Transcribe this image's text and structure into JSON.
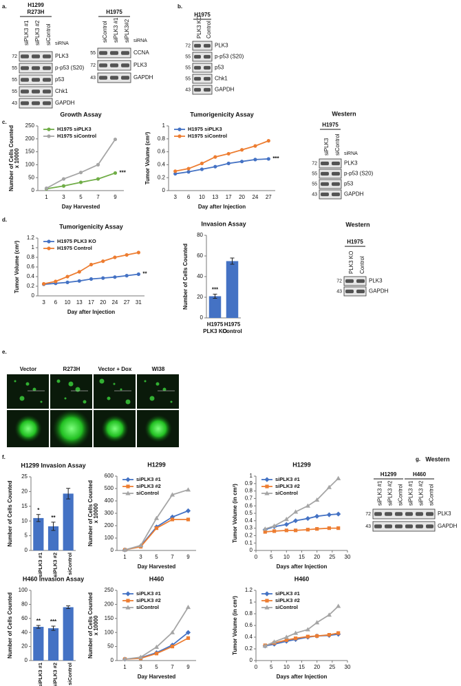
{
  "panel_labels": [
    "a.",
    "b.",
    "c.",
    "d.",
    "e.",
    "f.",
    "g."
  ],
  "blots": [
    {
      "groups": [
        {
          "cell_line": "H1299",
          "subtitle": "R273H",
          "lanes": [
            "siPLK3 #1",
            "siPLK3 #2",
            "siControl"
          ]
        }
      ],
      "treatment": "siRNA",
      "rows": [
        {
          "marker": 72,
          "protein": "PLK3"
        },
        {
          "marker": 55,
          "protein": "p-p53 (S20)"
        },
        {
          "marker": 55,
          "protein": "p53"
        },
        {
          "marker": 55,
          "protein": "Chk1"
        },
        {
          "marker": 43,
          "protein": "GAPDH"
        }
      ]
    },
    {
      "groups": [
        {
          "cell_line": "H1975",
          "lanes": [
            "siControl",
            "siPLK3 #1",
            "siPLK3#2"
          ]
        }
      ],
      "treatment": "siRNA",
      "rows": [
        {
          "marker": 55,
          "protein": "CCNA"
        },
        {
          "marker": 72,
          "protein": "PLK3"
        },
        {
          "marker": 43,
          "protein": "GAPDH"
        }
      ]
    },
    {
      "groups": [
        {
          "cell_line": "H1975",
          "lanes": [
            "PLK3 KO",
            "Control"
          ]
        }
      ],
      "rows": [
        {
          "marker": 72,
          "protein": "PLK3"
        },
        {
          "marker": 55,
          "protein": "p-p53 (S20)"
        },
        {
          "marker": 55,
          "protein": "p53"
        },
        {
          "marker": 55,
          "protein": "Chk1"
        },
        {
          "marker": 43,
          "protein": "GAPDH"
        }
      ]
    },
    {
      "title": "Western",
      "groups": [
        {
          "cell_line": "H1975",
          "lanes": [
            "siPLK3",
            "siControl"
          ]
        }
      ],
      "treatment": "siRNA",
      "rows": [
        {
          "marker": 72,
          "protein": "PLK3"
        },
        {
          "marker": 55,
          "protein": "p-p53 (S20)"
        },
        {
          "marker": 55,
          "protein": "p53"
        },
        {
          "marker": 43,
          "protein": "GAPDH"
        }
      ]
    },
    {
      "title": "Western",
      "groups": [
        {
          "cell_line": "H1975",
          "lanes": [
            "PLK3 KO",
            "Control"
          ]
        }
      ],
      "rows": [
        {
          "marker": 72,
          "protein": "PLK3"
        },
        {
          "marker": 43,
          "protein": "GAPDH"
        }
      ]
    },
    {
      "title": "Western",
      "groups": [
        {
          "cell_line": "H1299",
          "lanes": [
            "siPLK3 #1",
            "siPLK3 #2",
            "siControl"
          ]
        },
        {
          "cell_line": "H460",
          "lanes": [
            "siPLK3 #1",
            "siPLK3 #2",
            "siControl"
          ]
        }
      ],
      "rows": [
        {
          "marker": 72,
          "protein": "PLK3"
        },
        {
          "marker": 43,
          "protein": "GAPDH"
        }
      ]
    }
  ],
  "micrographs": {
    "labels": [
      "Vector",
      "R273H",
      "Vector + Dox",
      "WI38"
    ]
  },
  "chart_data": [
    {
      "type": "line",
      "title": "Growth Assay",
      "xlabel": "Day Harvested",
      "ylabel": [
        "Number of Cells Counted",
        "x 10000"
      ],
      "categories": [
        1,
        3,
        5,
        7,
        9
      ],
      "ylim": [
        0,
        250
      ],
      "yticks": [
        0,
        50,
        100,
        150,
        200,
        250
      ],
      "annotation": "***",
      "series": [
        {
          "name": "H1975 siPLK3",
          "color": "#70ad47",
          "marker": "circle",
          "values": [
            7,
            18,
            32,
            45,
            68
          ]
        },
        {
          "name": "H1975 siControl",
          "color": "#a5a5a5",
          "marker": "circle",
          "values": [
            9,
            45,
            70,
            100,
            198
          ]
        }
      ]
    },
    {
      "type": "line",
      "title": "Tumorigenicity Assay",
      "xlabel": "Day after Injection",
      "ylabel": "Tumor Volume (cm³)",
      "categories": [
        3,
        6,
        10,
        13,
        17,
        20,
        24,
        27
      ],
      "ylim": [
        0,
        1
      ],
      "yticks": [
        0,
        0.2,
        0.4,
        0.6,
        0.8,
        1
      ],
      "annotation": "***",
      "series": [
        {
          "name": "H1975 siPLK3",
          "color": "#4472c4",
          "marker": "circle",
          "values": [
            0.26,
            0.29,
            0.33,
            0.37,
            0.42,
            0.45,
            0.48,
            0.49
          ]
        },
        {
          "name": "H1975 siControl",
          "color": "#ed7d31",
          "marker": "circle",
          "values": [
            0.3,
            0.34,
            0.42,
            0.52,
            0.57,
            0.63,
            0.69,
            0.77
          ]
        }
      ]
    },
    {
      "type": "line",
      "title": "Tumorigenicity Assay",
      "xlabel": "Day after Injection",
      "ylabel": "Tumor Volume (cm³)",
      "categories": [
        3,
        6,
        10,
        13,
        17,
        20,
        24,
        27,
        31
      ],
      "ylim": [
        0,
        1.2
      ],
      "yticks": [
        0,
        0.2,
        0.4,
        0.6,
        0.8,
        1,
        1.2
      ],
      "annotation": "**",
      "series": [
        {
          "name": "H1975 PLK3 KO",
          "color": "#4472c4",
          "marker": "circle",
          "values": [
            0.24,
            0.26,
            0.28,
            0.31,
            0.35,
            0.37,
            0.39,
            0.42,
            0.45
          ]
        },
        {
          "name": "H1975 Control",
          "color": "#ed7d31",
          "marker": "circle",
          "values": [
            0.25,
            0.3,
            0.4,
            0.5,
            0.65,
            0.72,
            0.8,
            0.85,
            0.9
          ]
        }
      ]
    },
    {
      "type": "bar",
      "title": "Invasion Assay",
      "ylabel": "Number of Cells Counted",
      "color": "#4472c4",
      "categories": [
        [
          "H1975",
          "PLK3 KO"
        ],
        [
          "H1975",
          "Control"
        ]
      ],
      "values": [
        21,
        55
      ],
      "errors": [
        2,
        3
      ],
      "significance": [
        "***",
        null
      ],
      "ylim": [
        0,
        80
      ],
      "yticks": [
        0,
        20,
        40,
        60,
        80
      ]
    },
    {
      "type": "bar",
      "title": "H1299 Invasion Assay",
      "ylabel": "Number of Cells Counted",
      "color": "#4472c4",
      "categories": [
        "siPLK3 #1",
        "siPLK3 #2",
        "siControl"
      ],
      "values": [
        11,
        8.2,
        19.3
      ],
      "errors": [
        1.2,
        1.4,
        1.8
      ],
      "significance": [
        "*",
        "**",
        null
      ],
      "ylim": [
        0,
        25
      ],
      "yticks": [
        0,
        5,
        10,
        15,
        20,
        25
      ]
    },
    {
      "type": "line",
      "title": "H1299",
      "xlabel": "Day Harvested",
      "ylabel": [
        "Number of Cells Counted",
        "x 10000"
      ],
      "categories": [
        1,
        3,
        5,
        7,
        9
      ],
      "ylim": [
        0,
        600
      ],
      "yticks": [
        0,
        100,
        200,
        300,
        400,
        500,
        600
      ],
      "series": [
        {
          "name": "siPLK3 #1",
          "color": "#4472c4",
          "marker": "diamond",
          "values": [
            5,
            35,
            190,
            270,
            320
          ]
        },
        {
          "name": "siPLK3 #2",
          "color": "#ed7d31",
          "marker": "square",
          "values": [
            5,
            30,
            180,
            250,
            250
          ]
        },
        {
          "name": "siControl",
          "color": "#a5a5a5",
          "marker": "triangle",
          "values": [
            5,
            40,
            260,
            450,
            490
          ]
        }
      ]
    },
    {
      "type": "line",
      "title": "H1299",
      "xlabel": "Days after Injection",
      "ylabel": "Tumor Volume (in cm³)",
      "x": [
        3,
        6,
        10,
        13,
        17,
        20,
        24,
        27
      ],
      "xlim": [
        0,
        30
      ],
      "xticks": [
        0,
        5,
        10,
        15,
        20,
        25,
        30
      ],
      "ylim": [
        0,
        1
      ],
      "yticks": [
        0,
        0.1,
        0.2,
        0.3,
        0.4,
        0.5,
        0.6,
        0.7,
        0.8,
        0.9,
        1
      ],
      "series": [
        {
          "name": "siPLK3 #1",
          "color": "#4472c4",
          "marker": "diamond",
          "values": [
            0.28,
            0.32,
            0.35,
            0.4,
            0.43,
            0.46,
            0.48,
            0.49
          ]
        },
        {
          "name": "siPLK3 #2",
          "color": "#ed7d31",
          "marker": "square",
          "values": [
            0.25,
            0.26,
            0.27,
            0.27,
            0.28,
            0.29,
            0.3,
            0.3
          ]
        },
        {
          "name": "siControl",
          "color": "#a5a5a5",
          "marker": "triangle",
          "values": [
            0.29,
            0.33,
            0.42,
            0.52,
            0.6,
            0.68,
            0.85,
            0.97
          ]
        }
      ]
    },
    {
      "type": "bar",
      "title": "H460 Invasion Assay",
      "ylabel": "Number of Cells Counted",
      "color": "#4472c4",
      "categories": [
        "siPLK3 #1",
        "siPLK3 #2",
        "siControl"
      ],
      "values": [
        48,
        46,
        76
      ],
      "errors": [
        2,
        3,
        2
      ],
      "significance": [
        "**",
        "***",
        null
      ],
      "ylim": [
        0,
        100
      ],
      "yticks": [
        0,
        20,
        40,
        60,
        80,
        100
      ]
    },
    {
      "type": "line",
      "title": "H460",
      "xlabel": "Day Harvested",
      "ylabel": [
        "Number of Cells Counted",
        "x 10000"
      ],
      "categories": [
        1,
        3,
        5,
        7,
        9
      ],
      "ylim": [
        0,
        250
      ],
      "yticks": [
        0,
        50,
        100,
        150,
        200,
        250
      ],
      "series": [
        {
          "name": "siPLK3 #1",
          "color": "#4472c4",
          "marker": "diamond",
          "values": [
            5,
            10,
            28,
            55,
            100
          ]
        },
        {
          "name": "siPLK3 #2",
          "color": "#ed7d31",
          "marker": "square",
          "values": [
            5,
            8,
            25,
            50,
            80
          ]
        },
        {
          "name": "siControl",
          "color": "#a5a5a5",
          "marker": "triangle",
          "values": [
            5,
            12,
            48,
            100,
            190
          ]
        }
      ]
    },
    {
      "type": "line",
      "title": "H460",
      "xlabel": "Days after Injection",
      "ylabel": "Tumor Volume (in cm³)",
      "x": [
        3,
        6,
        10,
        13,
        17,
        20,
        24,
        27
      ],
      "xlim": [
        0,
        30
      ],
      "xticks": [
        0,
        5,
        10,
        15,
        20,
        25,
        30
      ],
      "ylim": [
        0,
        1.2
      ],
      "yticks": [
        0,
        0.2,
        0.4,
        0.6,
        0.8,
        1,
        1.2
      ],
      "series": [
        {
          "name": "siPLK3 #1",
          "color": "#4472c4",
          "marker": "diamond",
          "values": [
            0.25,
            0.28,
            0.33,
            0.36,
            0.4,
            0.42,
            0.43,
            0.45
          ]
        },
        {
          "name": "siPLK3 #2",
          "color": "#ed7d31",
          "marker": "square",
          "values": [
            0.26,
            0.3,
            0.35,
            0.38,
            0.41,
            0.42,
            0.44,
            0.47
          ]
        },
        {
          "name": "siControl",
          "color": "#a5a5a5",
          "marker": "triangle",
          "values": [
            0.25,
            0.32,
            0.4,
            0.47,
            0.53,
            0.65,
            0.78,
            0.93
          ]
        }
      ]
    }
  ]
}
